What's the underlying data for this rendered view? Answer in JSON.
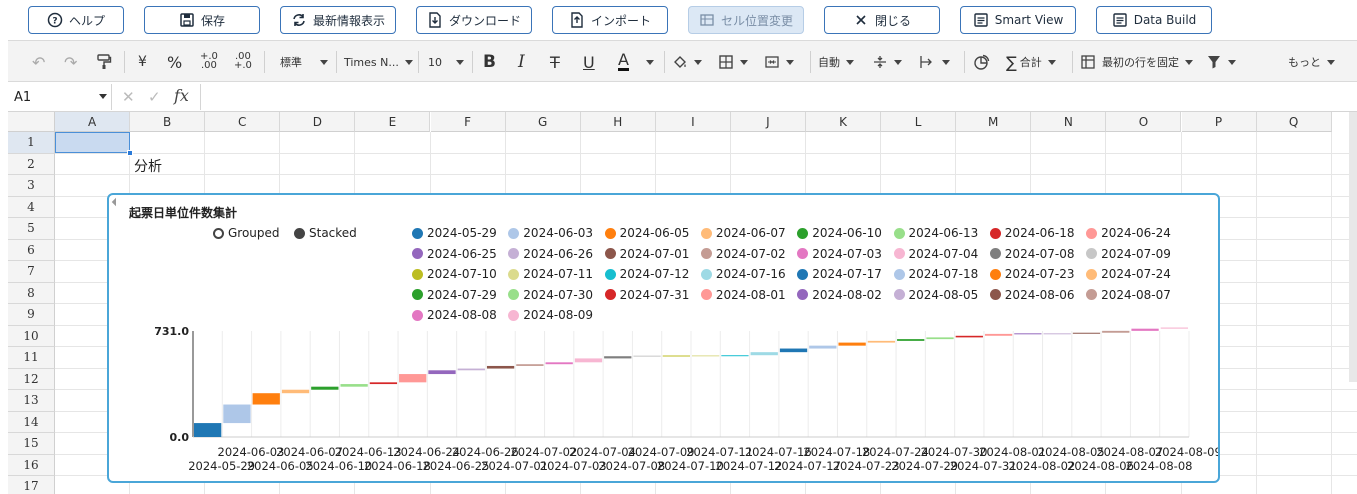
{
  "topbar": {
    "help": "ヘルプ",
    "save": "保存",
    "refresh": "最新情報表示",
    "download": "ダウンロード",
    "import": "インポート",
    "cell_move": "セル位置変更",
    "close": "閉じる",
    "smart_view": "Smart View",
    "data_build": "Data Build"
  },
  "toolbar": {
    "currency": "¥",
    "percent": "%",
    "dec_inc": "+.0\n.00",
    "dec_dec": "-.00\n+.0",
    "format": "標準",
    "font": "Times N...",
    "size": "10",
    "bold": "B",
    "italic": "I",
    "strike": "T",
    "underline": "U",
    "font_color": "A",
    "wrap": "自動",
    "sum": "合計",
    "freeze": "最初の行を固定",
    "more": "もっと"
  },
  "formula_bar": {
    "cell_ref": "A1",
    "fx": "fx"
  },
  "columns": [
    "A",
    "B",
    "C",
    "D",
    "E",
    "F",
    "G",
    "H",
    "I",
    "J",
    "K",
    "L",
    "M",
    "N",
    "O",
    "P",
    "Q"
  ],
  "rows": [
    "1",
    "2",
    "3",
    "4",
    "5",
    "6",
    "7",
    "8",
    "9",
    "10",
    "11",
    "12",
    "13",
    "14",
    "15",
    "16",
    "17"
  ],
  "cells": {
    "B2": "分析"
  },
  "chart": {
    "title": "起票日単位件数集計",
    "modes": [
      "Grouped",
      "Stacked"
    ],
    "selected_mode": "Stacked",
    "legend_colors": [
      "#1f77b4",
      "#aec7e8",
      "#ff7f0e",
      "#ffbb78",
      "#2ca02c",
      "#98df8a",
      "#d62728",
      "#ff9896",
      "#9467bd",
      "#c5b0d5",
      "#8c564b",
      "#c49c94",
      "#e377c2",
      "#f7b6d2",
      "#7f7f7f",
      "#c7c7c7",
      "#bcbd22",
      "#dbdb8d",
      "#17becf",
      "#9edae5"
    ]
  },
  "chart_data": {
    "type": "bar",
    "title": "起票日単位件数集計",
    "xlabel": "",
    "ylabel": "",
    "ylim": [
      0,
      731
    ],
    "y_tick_labels": [
      "0.0",
      "731.0"
    ],
    "categories": [
      "2024-05-29",
      "2024-06-03",
      "2024-06-05",
      "2024-06-07",
      "2024-06-10",
      "2024-06-13",
      "2024-06-18",
      "2024-06-24",
      "2024-06-25",
      "2024-06-26",
      "2024-07-01",
      "2024-07-02",
      "2024-07-03",
      "2024-07-04",
      "2024-07-08",
      "2024-07-09",
      "2024-07-10",
      "2024-07-11",
      "2024-07-12",
      "2024-07-16",
      "2024-07-17",
      "2024-07-18",
      "2024-07-23",
      "2024-07-24",
      "2024-07-29",
      "2024-07-30",
      "2024-07-31",
      "2024-08-01",
      "2024-08-02",
      "2024-08-05",
      "2024-08-06",
      "2024-08-07",
      "2024-08-08",
      "2024-08-09"
    ],
    "stack_base": [
      0,
      96,
      224,
      302,
      326,
      347,
      365,
      377,
      434,
      460,
      472,
      490,
      502,
      515,
      542,
      557,
      561,
      562,
      563,
      564,
      585,
      610,
      630,
      651,
      663,
      675,
      687,
      698,
      711,
      715,
      715,
      719,
      732,
      747
    ],
    "values": [
      96,
      128,
      78,
      24,
      21,
      18,
      12,
      57,
      26,
      12,
      18,
      12,
      13,
      27,
      15,
      4,
      1,
      1,
      1,
      21,
      25,
      20,
      21,
      12,
      12,
      12,
      11,
      13,
      4,
      0,
      4,
      13,
      15,
      8
    ]
  }
}
